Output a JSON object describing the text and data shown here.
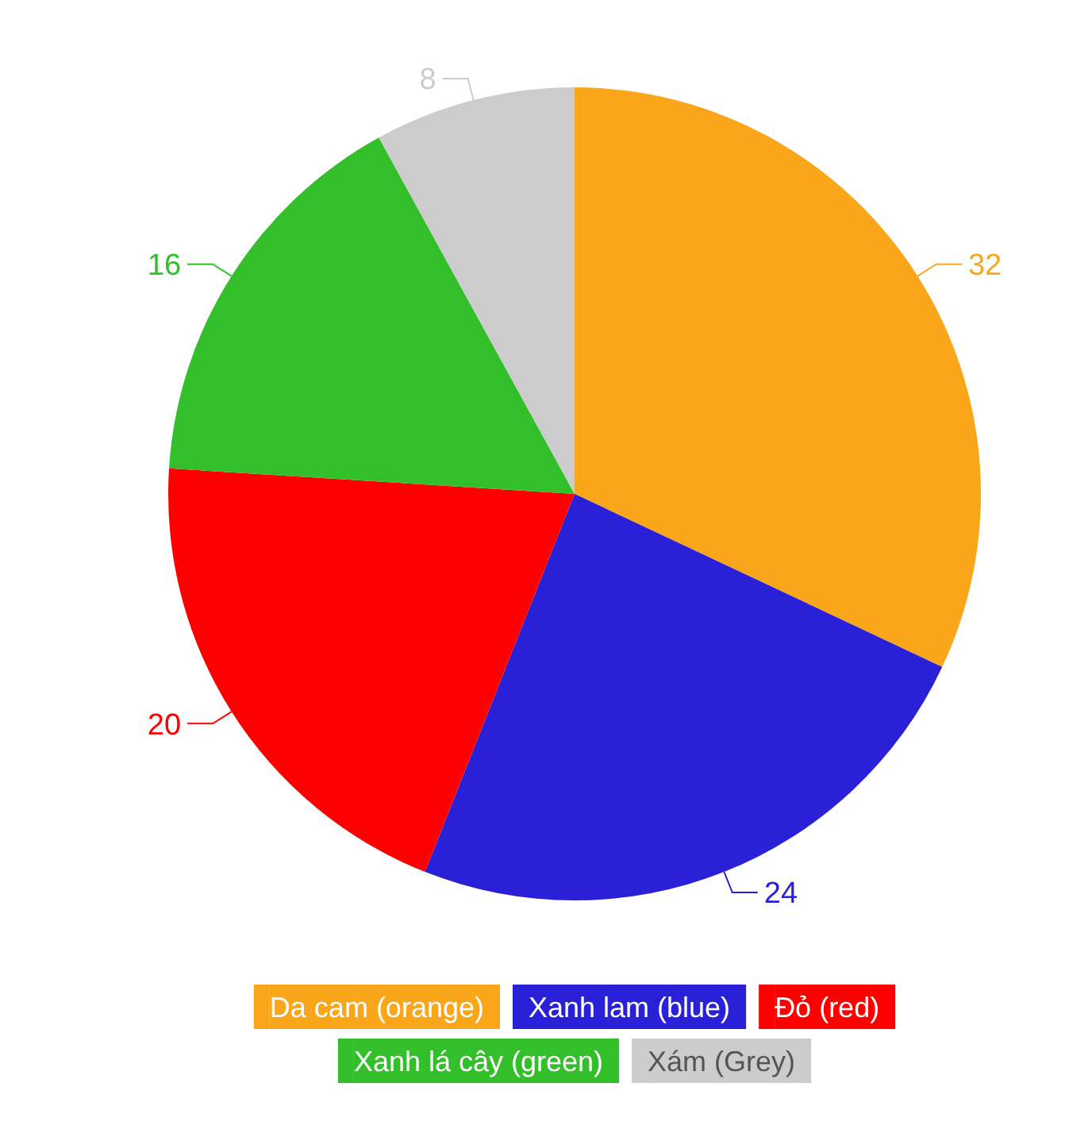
{
  "chart_data": {
    "type": "pie",
    "categories": [
      "Da cam (orange)",
      "Xanh lam (blue)",
      "Đỏ (red)",
      "Xanh lá cây (green)",
      "Xám (Grey)"
    ],
    "values": [
      32,
      24,
      20,
      16,
      8
    ],
    "colors": [
      "#f9a61a",
      "#2a20d8",
      "#ff0000",
      "#33bf2a",
      "#cccccc"
    ],
    "data_labels": true,
    "legend": "bottom"
  }
}
